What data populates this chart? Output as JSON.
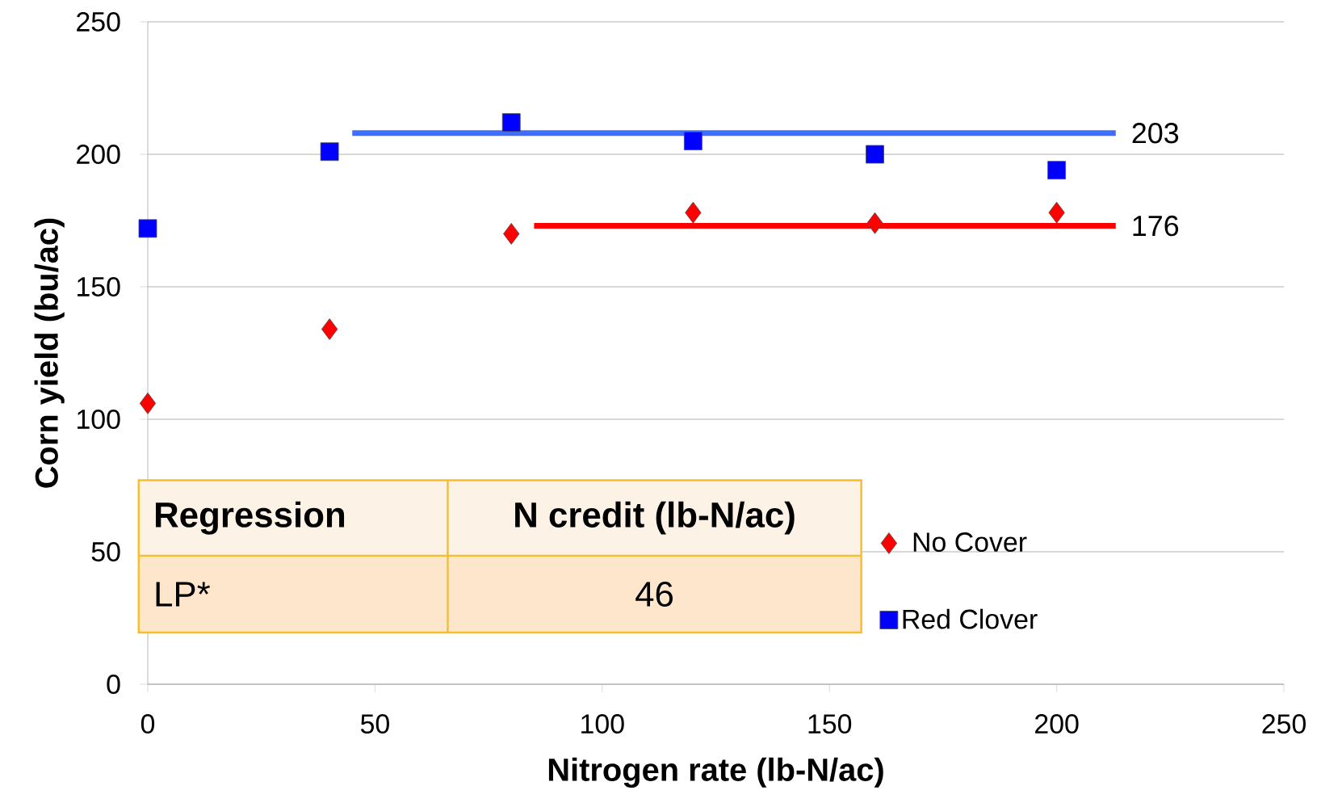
{
  "chart_data": {
    "type": "scatter",
    "xlabel": "Nitrogen rate (lb-N/ac)",
    "ylabel": "Corn yield (bu/ac)",
    "xlim": [
      0,
      250
    ],
    "xticks": [
      0,
      50,
      100,
      150,
      200,
      250
    ],
    "ylim": [
      0,
      250
    ],
    "yticks": [
      0,
      50,
      100,
      150,
      200,
      250
    ],
    "grid": "y",
    "legend": "bottom right",
    "series": [
      {
        "name": "No Cover",
        "color": "#ff0000",
        "marker": "diamond",
        "x": [
          0,
          40,
          80,
          120,
          160,
          200
        ],
        "values": [
          106,
          134,
          170,
          178,
          174,
          178
        ]
      },
      {
        "name": "Red Clover",
        "color": "#0000ff",
        "marker": "square",
        "x": [
          0,
          40,
          80,
          120,
          160,
          200
        ],
        "values": [
          172,
          201,
          212,
          205,
          200,
          194
        ]
      },
      {
        "type": "line",
        "color": "#3d6eff",
        "marker": "none",
        "x": [
          45,
          213
        ],
        "values": [
          208,
          208
        ]
      },
      {
        "type": "line",
        "color": "#ff0000",
        "marker": "none",
        "x": [
          85,
          213
        ],
        "values": [
          173,
          173
        ]
      }
    ],
    "annotations": [
      "Regression",
      "N credit (lb-N/ac)",
      "LP*",
      "46",
      {
        "text": "203",
        "x": 213,
        "y": 208
      },
      {
        "text": "176",
        "x": 213,
        "y": 173
      }
    ]
  }
}
